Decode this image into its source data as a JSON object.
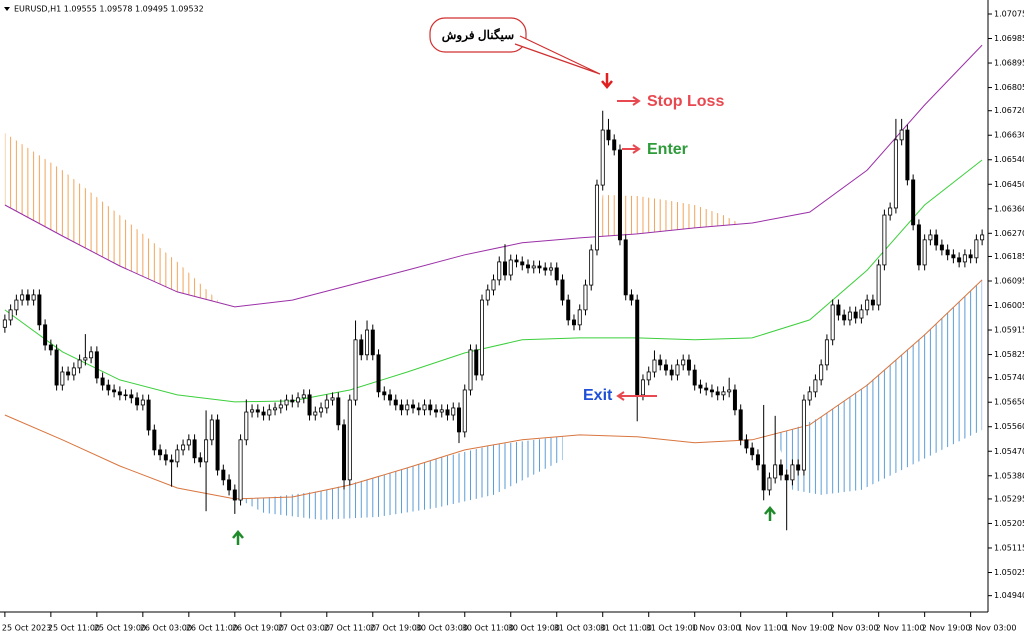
{
  "chart_data": {
    "type": "candlestick",
    "title": "EURUSD,H1  1.09555 1.09578 1.09495 1.09532",
    "annotations": [
      "سیگنال فروش",
      "Stop Loss",
      "Enter",
      "Exit"
    ],
    "categories": [
      "25 Oct 2023",
      null,
      null,
      null,
      null,
      null,
      null,
      null,
      "25 Oct 11:00",
      null,
      null,
      null,
      null,
      null,
      null,
      null,
      "25 Oct 19:00",
      null,
      null,
      null,
      null,
      null,
      null,
      null,
      "26 Oct 03:00",
      null,
      null,
      null,
      null,
      null,
      null,
      null,
      "26 Oct 11:00",
      null,
      null,
      null,
      null,
      null,
      null,
      null,
      "26 Oct 19:00",
      null,
      null,
      null,
      null,
      null,
      null,
      null,
      "27 Oct 03:00",
      null,
      null,
      null,
      null,
      null,
      null,
      null,
      "27 Oct 11:00",
      null,
      null,
      null,
      null,
      null,
      null,
      null,
      "27 Oct 19:00",
      null,
      null,
      null,
      null,
      null,
      null,
      null,
      "30 Oct 03:00",
      null,
      null,
      null,
      null,
      null,
      null,
      null,
      "30 Oct 11:00",
      null,
      null,
      null,
      null,
      null,
      null,
      null,
      "30 Oct 19:00",
      null,
      null,
      null,
      null,
      null,
      null,
      null,
      "31 Oct 03:00",
      null,
      null,
      null,
      null,
      null,
      null,
      null,
      "31 Oct 11:00",
      null,
      null,
      null,
      null,
      null,
      null,
      null,
      "31 Oct 19:00",
      null,
      null,
      null,
      null,
      null,
      null,
      null,
      "1 Nov 03:00",
      null,
      null,
      null,
      null,
      null,
      null,
      null,
      "1 Nov 11:00",
      null,
      null,
      null,
      null,
      null,
      null,
      null,
      "1 Nov 19:00",
      null,
      null,
      null,
      null,
      null,
      null,
      null,
      "2 Nov 03:00",
      null,
      null,
      null,
      null,
      null,
      null,
      null,
      "2 Nov 11:00",
      null,
      null,
      null,
      null,
      null,
      null,
      null,
      "2 Nov 19:00",
      null,
      null,
      null,
      null,
      null,
      null,
      null,
      "3 Nov 03:00",
      null,
      null
    ],
    "open": [
      1.05925,
      1.05952,
      1.05989,
      1.06025,
      1.06044,
      1.06025,
      1.06044,
      1.05934,
      1.0586,
      1.05842,
      1.05713,
      1.05761,
      1.0575,
      1.05776,
      1.05805,
      1.05813,
      1.05835,
      1.05739,
      1.05713,
      1.05695,
      1.05688,
      1.05677,
      1.05677,
      1.05666,
      1.0564,
      1.05658,
      1.05548,
      1.05475,
      1.05457,
      1.05438,
      1.05431,
      1.05475,
      1.05493,
      1.05512,
      1.05446,
      1.05431,
      1.05512,
      1.05585,
      1.05401,
      1.05365,
      1.05328,
      1.05291,
      1.05512,
      1.05614,
      1.05622,
      1.05614,
      1.05603,
      1.05622,
      1.05629,
      1.0564,
      1.05658,
      1.05651,
      1.05666,
      1.05677,
      1.05603,
      1.05614,
      1.05629,
      1.05658,
      1.05666,
      1.05567,
      1.05365,
      1.05658,
      1.05879,
      1.05824,
      1.05915,
      1.05824,
      1.05688,
      1.05677,
      1.05658,
      1.0564,
      1.05622,
      1.0564,
      1.05629,
      1.05622,
      1.0564,
      1.05622,
      1.05614,
      1.05622,
      1.05603,
      1.05629,
      1.05541,
      1.05695,
      1.05842,
      1.0575,
      1.06025,
      1.06062,
      1.06099,
      1.06165,
      1.06117,
      1.06172,
      1.06165,
      1.06154,
      1.06143,
      1.0615,
      1.06143,
      1.06135,
      1.06143,
      1.06099,
      1.06025,
      1.05952,
      1.05934,
      1.05989,
      1.0608,
      1.06209,
      1.06447,
      1.06649,
      1.06613,
      1.06576,
      1.06246,
      1.06044,
      1.06025,
      1.05677,
      1.05732,
      1.05761,
      1.05805,
      1.05787,
      1.05768,
      1.0575,
      1.05787,
      1.05805,
      1.05768,
      1.05713,
      1.05702,
      1.05695,
      1.05688,
      1.05677,
      1.05688,
      1.05695,
      1.05622,
      1.05512,
      1.05482,
      1.05457,
      1.0542,
      1.05328,
      1.05372,
      1.0542,
      1.05383,
      1.05365,
      1.0542,
      1.05401,
      1.05658,
      1.05688,
      1.05732,
      1.05787,
      1.05879,
      1.06007,
      1.0597,
      1.05952,
      1.05981,
      1.05959,
      1.05989,
      1.06025,
      1.06007,
      1.06154,
      1.06337,
      1.06363,
      1.06613,
      1.06649,
      1.06466,
      1.06301,
      1.06154,
      1.06246,
      1.06264,
      1.06227,
      1.06209,
      1.06191,
      1.0618,
      1.06165,
      1.06191,
      1.0618,
      1.06246
    ],
    "high": [
      1.05972,
      1.06009,
      1.06045,
      1.06064,
      1.06064,
      1.06064,
      1.06064,
      1.05954,
      1.0588,
      1.05862,
      1.05781,
      1.05781,
      1.05796,
      1.05825,
      1.059,
      1.05855,
      1.05855,
      1.05759,
      1.05733,
      1.05715,
      1.05708,
      1.05697,
      1.05697,
      1.05686,
      1.05678,
      1.05678,
      1.05568,
      1.05495,
      1.05477,
      1.05458,
      1.05495,
      1.05513,
      1.05532,
      1.05532,
      1.05466,
      1.0562,
      1.05605,
      1.05605,
      1.05421,
      1.05385,
      1.05348,
      1.05532,
      1.0566,
      1.05642,
      1.05642,
      1.05634,
      1.05642,
      1.05649,
      1.0566,
      1.05678,
      1.05678,
      1.05686,
      1.05697,
      1.05697,
      1.05634,
      1.05649,
      1.05678,
      1.05686,
      1.05686,
      1.05587,
      1.05678,
      1.0595,
      1.05899,
      1.0595,
      1.05935,
      1.05844,
      1.05708,
      1.05697,
      1.05678,
      1.0566,
      1.0566,
      1.0566,
      1.05649,
      1.0566,
      1.0566,
      1.05642,
      1.05642,
      1.05642,
      1.05649,
      1.05649,
      1.05715,
      1.05862,
      1.05862,
      1.06045,
      1.06082,
      1.06119,
      1.06185,
      1.0623,
      1.06192,
      1.06192,
      1.06185,
      1.06174,
      1.0617,
      1.0617,
      1.06163,
      1.06163,
      1.06163,
      1.06119,
      1.06045,
      1.05972,
      1.06009,
      1.061,
      1.06229,
      1.06467,
      1.0672,
      1.0669,
      1.06633,
      1.06596,
      1.06266,
      1.06064,
      1.06045,
      1.05752,
      1.05781,
      1.0584,
      1.05825,
      1.05807,
      1.05788,
      1.05807,
      1.05825,
      1.05825,
      1.05788,
      1.05733,
      1.05722,
      1.05715,
      1.05708,
      1.05708,
      1.0574,
      1.05715,
      1.05642,
      1.05532,
      1.05502,
      1.05477,
      1.0564,
      1.05392,
      1.056,
      1.0544,
      1.05403,
      1.0544,
      1.0544,
      1.05678,
      1.05708,
      1.05752,
      1.05807,
      1.05899,
      1.06027,
      1.06027,
      1.0599,
      1.06001,
      1.06001,
      1.06009,
      1.06045,
      1.06045,
      1.06174,
      1.06357,
      1.06383,
      1.0669,
      1.0669,
      1.06669,
      1.06486,
      1.06321,
      1.06266,
      1.06284,
      1.06284,
      1.06247,
      1.06229,
      1.06211,
      1.062,
      1.06211,
      1.06211,
      1.06266,
      1.06284
    ],
    "low": [
      1.05905,
      1.05932,
      1.05969,
      1.06005,
      1.06005,
      1.06005,
      1.05914,
      1.0584,
      1.05822,
      1.05693,
      1.05693,
      1.0573,
      1.0573,
      1.05756,
      1.05785,
      1.05793,
      1.05719,
      1.05693,
      1.05675,
      1.05668,
      1.05657,
      1.05657,
      1.05646,
      1.0562,
      1.0562,
      1.05528,
      1.05455,
      1.05437,
      1.05418,
      1.0534,
      1.05411,
      1.05455,
      1.05473,
      1.05426,
      1.05411,
      1.0525,
      1.05492,
      1.05381,
      1.05345,
      1.05308,
      1.0524,
      1.05271,
      1.05492,
      1.05594,
      1.05594,
      1.05583,
      1.05583,
      1.05602,
      1.05609,
      1.0562,
      1.05631,
      1.05631,
      1.05646,
      1.05583,
      1.05583,
      1.05594,
      1.05609,
      1.05638,
      1.05547,
      1.0533,
      1.05345,
      1.05638,
      1.05804,
      1.05804,
      1.05804,
      1.05668,
      1.05657,
      1.05638,
      1.0562,
      1.05602,
      1.05602,
      1.05609,
      1.05602,
      1.05602,
      1.05602,
      1.05594,
      1.05594,
      1.05583,
      1.05583,
      1.055,
      1.05521,
      1.05675,
      1.0573,
      1.0573,
      1.06005,
      1.06042,
      1.06079,
      1.06097,
      1.06097,
      1.06145,
      1.06134,
      1.06123,
      1.06123,
      1.06123,
      1.06115,
      1.06115,
      1.06079,
      1.06005,
      1.05932,
      1.05914,
      1.05914,
      1.05969,
      1.0606,
      1.06189,
      1.06427,
      1.06593,
      1.06556,
      1.06226,
      1.06024,
      1.06005,
      1.0558,
      1.05657,
      1.05712,
      1.05741,
      1.05767,
      1.05748,
      1.0573,
      1.0573,
      1.05767,
      1.05748,
      1.05693,
      1.05682,
      1.05675,
      1.05668,
      1.05657,
      1.05657,
      1.05668,
      1.05602,
      1.05492,
      1.05462,
      1.05437,
      1.054,
      1.0529,
      1.05308,
      1.05352,
      1.05363,
      1.0518,
      1.05345,
      1.05381,
      1.05381,
      1.05638,
      1.05668,
      1.05712,
      1.05767,
      1.05859,
      1.0595,
      1.05932,
      1.05932,
      1.05939,
      1.05939,
      1.05969,
      1.05987,
      1.05987,
      1.06134,
      1.06317,
      1.06343,
      1.06593,
      1.06446,
      1.06281,
      1.06134,
      1.06134,
      1.06226,
      1.06207,
      1.06189,
      1.06171,
      1.0616,
      1.06145,
      1.06145,
      1.0616,
      1.0616,
      1.06226
    ],
    "close": [
      1.05952,
      1.05989,
      1.06025,
      1.06044,
      1.06025,
      1.06044,
      1.05934,
      1.0586,
      1.05842,
      1.05713,
      1.05761,
      1.0575,
      1.05776,
      1.05805,
      1.05813,
      1.05835,
      1.05739,
      1.05713,
      1.05695,
      1.05688,
      1.05677,
      1.05677,
      1.05666,
      1.0564,
      1.05658,
      1.05548,
      1.05475,
      1.05457,
      1.05438,
      1.05431,
      1.05475,
      1.05493,
      1.05512,
      1.05446,
      1.05431,
      1.05512,
      1.05585,
      1.05401,
      1.05365,
      1.05328,
      1.05291,
      1.05512,
      1.05614,
      1.05622,
      1.05614,
      1.05603,
      1.05622,
      1.05629,
      1.0564,
      1.05658,
      1.05651,
      1.05666,
      1.05677,
      1.05603,
      1.05614,
      1.05629,
      1.05658,
      1.05666,
      1.05567,
      1.05365,
      1.05658,
      1.05879,
      1.05824,
      1.05915,
      1.05824,
      1.05688,
      1.05677,
      1.05658,
      1.0564,
      1.05622,
      1.0564,
      1.05629,
      1.05622,
      1.0564,
      1.05622,
      1.05614,
      1.05622,
      1.05603,
      1.05629,
      1.05541,
      1.05695,
      1.05842,
      1.0575,
      1.06025,
      1.06062,
      1.06099,
      1.06165,
      1.06117,
      1.06172,
      1.06165,
      1.06154,
      1.06143,
      1.0615,
      1.06143,
      1.06135,
      1.06143,
      1.06099,
      1.06025,
      1.05952,
      1.05934,
      1.05989,
      1.0608,
      1.06209,
      1.06447,
      1.06649,
      1.06613,
      1.06576,
      1.06246,
      1.06044,
      1.06025,
      1.05677,
      1.05732,
      1.05761,
      1.05805,
      1.05787,
      1.05768,
      1.0575,
      1.05787,
      1.05805,
      1.05768,
      1.05713,
      1.05702,
      1.05695,
      1.05688,
      1.05677,
      1.05688,
      1.05695,
      1.05622,
      1.05512,
      1.05482,
      1.05457,
      1.0542,
      1.05328,
      1.05372,
      1.0542,
      1.05383,
      1.05365,
      1.0542,
      1.05401,
      1.05658,
      1.05688,
      1.05732,
      1.05787,
      1.05879,
      1.06007,
      1.0597,
      1.05952,
      1.05981,
      1.05959,
      1.05989,
      1.06025,
      1.06007,
      1.06154,
      1.06337,
      1.06363,
      1.06613,
      1.06649,
      1.06466,
      1.06301,
      1.06154,
      1.06246,
      1.06264,
      1.06227,
      1.06209,
      1.06191,
      1.0618,
      1.06165,
      1.06191,
      1.0618,
      1.06246,
      1.06264
    ],
    "bands": [
      {
        "color": "#9b2fa8",
        "x": [
          0,
          10,
          20,
          30,
          40,
          50,
          60,
          70,
          80,
          90,
          100,
          110,
          120,
          130,
          140,
          150,
          160,
          170
        ],
        "values": [
          1.06374,
          1.0626,
          1.0615,
          1.06055,
          1.06,
          1.06025,
          1.0608,
          1.06135,
          1.06191,
          1.06235,
          1.06253,
          1.06268,
          1.0629,
          1.06308,
          1.06348,
          1.06502,
          1.06741,
          1.06961
        ]
      },
      {
        "color": "#3ccf3c",
        "x": [
          0,
          10,
          20,
          30,
          40,
          50,
          60,
          70,
          80,
          90,
          100,
          110,
          120,
          130,
          140,
          150,
          160,
          170
        ],
        "values": [
          1.05989,
          1.05835,
          1.05732,
          1.05677,
          1.05651,
          1.05655,
          1.05695,
          1.05761,
          1.05831,
          1.05879,
          1.05886,
          1.05886,
          1.05879,
          1.05886,
          1.05952,
          1.06135,
          1.06374,
          1.06539
        ]
      },
      {
        "color": "#d9753e",
        "x": [
          0,
          10,
          20,
          30,
          40,
          50,
          60,
          70,
          80,
          90,
          100,
          110,
          120,
          130,
          140,
          150,
          160,
          170
        ],
        "values": [
          1.05603,
          1.05512,
          1.05416,
          1.05335,
          1.05295,
          1.05302,
          1.05346,
          1.05409,
          1.05475,
          1.05512,
          1.0553,
          1.05523,
          1.05501,
          1.05512,
          1.05567,
          1.05713,
          1.05897,
          1.06099
        ]
      }
    ],
    "clouds": [
      {
        "color": "#f0a35a",
        "edge": "upper",
        "x": [
          0,
          10,
          20,
          30,
          37
        ],
        "values": [
          1.06638,
          1.06502,
          1.06337,
          1.06165,
          1.06025
        ]
      },
      {
        "color": "#f0a35a",
        "edge": "upper",
        "x": [
          103,
          104,
          110,
          115,
          120,
          125,
          128
        ],
        "values": [
          1.06257,
          1.06411,
          1.06407,
          1.06392,
          1.06374,
          1.06337,
          1.06304
        ]
      },
      {
        "color": "#5b9bd5",
        "edge": "lower",
        "x": [
          41,
          45,
          55,
          65,
          75,
          85,
          97
        ],
        "values": [
          1.05291,
          1.05244,
          1.05218,
          1.05229,
          1.05262,
          1.0531,
          1.05438
        ]
      },
      {
        "color": "#5b9bd5",
        "edge": "lower",
        "x": [
          134,
          137,
          142,
          149,
          156,
          163,
          170
        ],
        "values": [
          1.05541,
          1.05328,
          1.0531,
          1.05328,
          1.05401,
          1.05475,
          1.05548
        ]
      }
    ],
    "ylim": [
      1.0488,
      1.07097
    ],
    "yticks": [
      1.07075,
      1.06985,
      1.06895,
      1.06805,
      {
        "value": 1.0672,
        "label": "1.06720"
      },
      {
        "value": 1.0663,
        "label": "1.06630"
      },
      {
        "value": 1.0654,
        "label": "1.06540"
      },
      {
        "value": 1.0645,
        "label": "1.06450"
      },
      {
        "value": 1.0636,
        "label": "1.06360"
      },
      {
        "value": 1.0627,
        "label": "1.06270"
      },
      1.06185,
      1.06095,
      1.06005,
      1.05915,
      1.05825,
      {
        "value": 1.0574,
        "label": "1.05740"
      },
      {
        "value": 1.0565,
        "label": "1.05650"
      },
      {
        "value": 1.0556,
        "label": "1.05560"
      },
      {
        "value": 1.0547,
        "label": "1.05470"
      },
      {
        "value": 1.0538,
        "label": "1.05380"
      },
      1.05295,
      1.05205,
      1.05115,
      1.05025,
      {
        "value": 1.0494,
        "label": "1.04940"
      }
    ],
    "bull_color": "#ffffff",
    "bear_color": "#000000"
  }
}
